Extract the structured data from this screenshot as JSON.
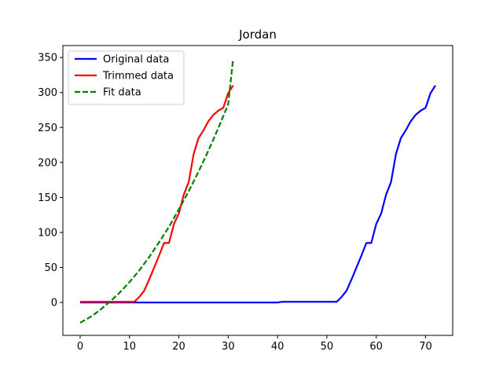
{
  "chart_data": {
    "type": "line",
    "title": "Jordan",
    "xlabel": "",
    "ylabel": "",
    "xlim": [
      -3.5,
      75.5
    ],
    "ylim": [
      -47,
      367
    ],
    "xticks": [
      0,
      10,
      20,
      30,
      40,
      50,
      60,
      70
    ],
    "yticks": [
      0,
      50,
      100,
      150,
      200,
      250,
      300,
      350
    ],
    "grid": false,
    "legend_position": "top-left",
    "series": [
      {
        "name": "Original data",
        "color": "#0000ff",
        "dash": "solid",
        "points": [
          [
            0,
            0
          ],
          [
            40,
            0
          ],
          [
            41,
            1
          ],
          [
            52,
            1
          ],
          [
            53,
            8
          ],
          [
            54,
            17
          ],
          [
            55,
            33
          ],
          [
            56,
            50
          ],
          [
            57,
            67
          ],
          [
            58,
            85
          ],
          [
            59,
            85
          ],
          [
            60,
            112
          ],
          [
            61,
            127
          ],
          [
            62,
            154
          ],
          [
            63,
            172
          ],
          [
            64,
            212
          ],
          [
            65,
            235
          ],
          [
            66,
            246
          ],
          [
            67,
            259
          ],
          [
            68,
            268
          ],
          [
            69,
            274
          ],
          [
            70,
            278
          ],
          [
            71,
            299
          ],
          [
            72,
            310
          ]
        ]
      },
      {
        "name": "Trimmed data",
        "color": "#ff0000",
        "dash": "solid",
        "points": [
          [
            0,
            1
          ],
          [
            11,
            1
          ],
          [
            12,
            8
          ],
          [
            13,
            17
          ],
          [
            14,
            33
          ],
          [
            15,
            50
          ],
          [
            16,
            67
          ],
          [
            17,
            85
          ],
          [
            18,
            85
          ],
          [
            19,
            112
          ],
          [
            20,
            127
          ],
          [
            21,
            154
          ],
          [
            22,
            172
          ],
          [
            23,
            212
          ],
          [
            24,
            235
          ],
          [
            25,
            246
          ],
          [
            26,
            259
          ],
          [
            27,
            268
          ],
          [
            28,
            274
          ],
          [
            29,
            278
          ],
          [
            30,
            299
          ],
          [
            31,
            310
          ]
        ]
      },
      {
        "name": "Fit data",
        "color": "#008000",
        "dash": "dashed",
        "points": [
          [
            0,
            -29
          ],
          [
            2,
            -21
          ],
          [
            4,
            -11
          ],
          [
            6,
            1
          ],
          [
            8,
            14
          ],
          [
            10,
            29
          ],
          [
            12,
            46
          ],
          [
            14,
            65
          ],
          [
            16,
            86
          ],
          [
            18,
            108
          ],
          [
            20,
            133
          ],
          [
            22,
            159
          ],
          [
            24,
            187
          ],
          [
            26,
            217
          ],
          [
            28,
            249
          ],
          [
            30,
            283
          ],
          [
            31,
            348
          ]
        ]
      }
    ]
  }
}
